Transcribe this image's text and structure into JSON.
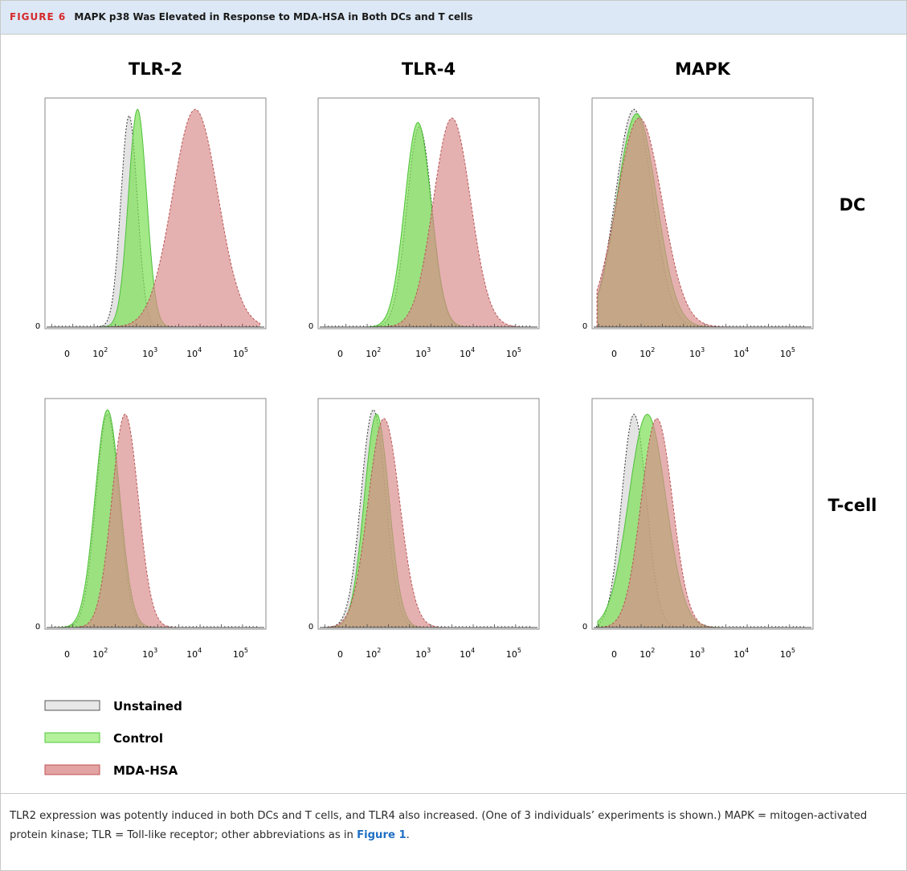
{
  "header": {
    "figure_label": "FIGURE 6",
    "title": "MAPK p38 Was Elevated in Response to MDA-HSA in Both DCs and T cells"
  },
  "columns": [
    "TLR-2",
    "TLR-4",
    "MAPK"
  ],
  "rows": [
    "DC",
    "T-cell"
  ],
  "axis": {
    "y_zero": "0",
    "x_ticks": [
      {
        "base": "0",
        "exp": ""
      },
      {
        "base": "10",
        "exp": "2"
      },
      {
        "base": "10",
        "exp": "3"
      },
      {
        "base": "10",
        "exp": "4"
      },
      {
        "base": "10",
        "exp": "5"
      }
    ]
  },
  "legend": [
    {
      "name": "Unstained",
      "fill": "#e8e8e8",
      "stroke": "#555555"
    },
    {
      "name": "Control",
      "fill": "#b5f09a",
      "stroke": "#4cc93a"
    },
    {
      "name": "MDA-HSA",
      "fill": "#e2a3a3",
      "stroke": "#c05050"
    }
  ],
  "colors": {
    "unstained_fill": "#d9d9d9",
    "control_fill": "#7fe05a",
    "mda_fill": "#d98a8a",
    "overlap_fill": "#6f8a3a"
  },
  "chart_data": {
    "type": "area",
    "title": "MAPK p38 Was Elevated in Response to MDA-HSA in Both DCs and T cells",
    "xlabel": "",
    "ylabel": "",
    "x_scale": "biexponential",
    "xlim": [
      0,
      100000
    ],
    "panels": [
      {
        "column": "TLR-2",
        "row": "DC",
        "series": [
          {
            "name": "Unstained",
            "peak_x": 500,
            "peak_y": 0.97,
            "width": 0.2
          },
          {
            "name": "Control",
            "peak_x": 800,
            "peak_y": 1.0,
            "width": 0.22
          },
          {
            "name": "MDA-HSA",
            "peak_x": 20000,
            "peak_y": 1.0,
            "width": 0.55
          }
        ]
      },
      {
        "column": "TLR-4",
        "row": "DC",
        "series": [
          {
            "name": "Unstained",
            "peak_x": 1300,
            "peak_y": 0.92,
            "width": 0.3
          },
          {
            "name": "Control",
            "peak_x": 1200,
            "peak_y": 0.94,
            "width": 0.32
          },
          {
            "name": "MDA-HSA",
            "peak_x": 8000,
            "peak_y": 0.96,
            "width": 0.45
          }
        ]
      },
      {
        "column": "MAPK",
        "row": "DC",
        "series": [
          {
            "name": "Unstained",
            "peak_x": 50,
            "peak_y": 1.0,
            "width": 0.45
          },
          {
            "name": "Control",
            "peak_x": 60,
            "peak_y": 0.98,
            "width": 0.48
          },
          {
            "name": "MDA-HSA",
            "peak_x": 70,
            "peak_y": 0.96,
            "width": 0.55
          }
        ]
      },
      {
        "column": "TLR-2",
        "row": "T-cell",
        "series": [
          {
            "name": "Unstained",
            "peak_x": 150,
            "peak_y": 0.98,
            "width": 0.28
          },
          {
            "name": "Control",
            "peak_x": 150,
            "peak_y": 1.0,
            "width": 0.3
          },
          {
            "name": "MDA-HSA",
            "peak_x": 400,
            "peak_y": 0.98,
            "width": 0.32
          }
        ]
      },
      {
        "column": "TLR-4",
        "row": "T-cell",
        "series": [
          {
            "name": "Unstained",
            "peak_x": 100,
            "peak_y": 1.0,
            "width": 0.3
          },
          {
            "name": "Control",
            "peak_x": 120,
            "peak_y": 0.98,
            "width": 0.3
          },
          {
            "name": "MDA-HSA",
            "peak_x": 180,
            "peak_y": 0.96,
            "width": 0.38
          }
        ]
      },
      {
        "column": "MAPK",
        "row": "T-cell",
        "series": [
          {
            "name": "Unstained",
            "peak_x": 50,
            "peak_y": 0.98,
            "width": 0.3
          },
          {
            "name": "Control",
            "peak_x": 100,
            "peak_y": 0.98,
            "width": 0.45
          },
          {
            "name": "MDA-HSA",
            "peak_x": 170,
            "peak_y": 0.96,
            "width": 0.38
          }
        ]
      }
    ]
  },
  "caption": {
    "text_main": "TLR2 expression was potently induced in both DCs and T cells, and TLR4 also increased. (One of 3 individuals’ experiments is shown.) MAPK = mitogen-activated protein kinase; TLR = Toll-like receptor; other abbreviations as in ",
    "link": "Figure 1",
    "text_end": "."
  }
}
